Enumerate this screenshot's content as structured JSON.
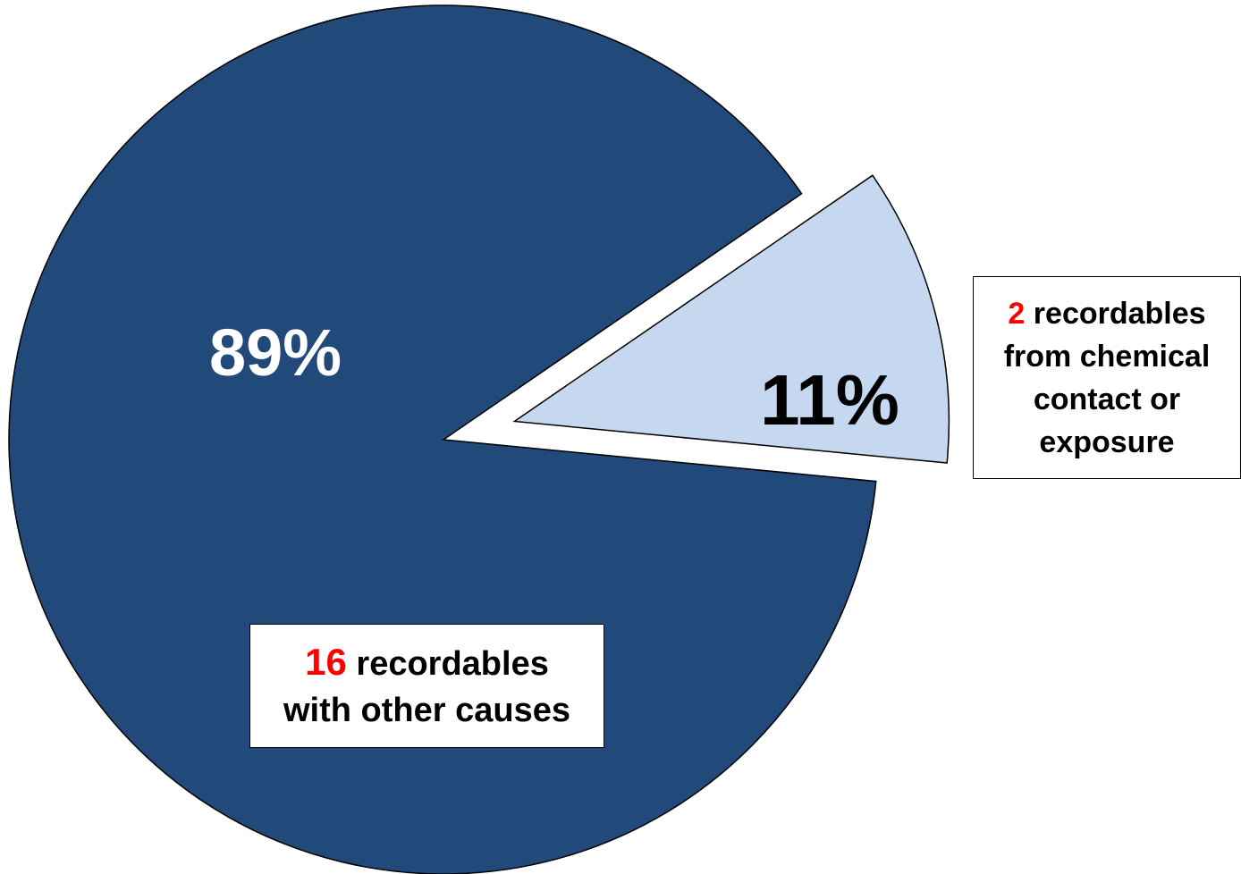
{
  "chart_data": {
    "type": "pie",
    "slices": [
      {
        "value": 16,
        "percent_label": "89%",
        "color": "#21497a",
        "label_color": "#ffffff",
        "exploded": false
      },
      {
        "value": 2,
        "percent_label": "11%",
        "color": "#c6d8ef",
        "label_color": "#000000",
        "exploded": true
      }
    ],
    "callouts": [
      {
        "count": "16",
        "text_line1": "recordables",
        "text_line2": "with other causes"
      },
      {
        "count": "2",
        "text_line1": "recordables",
        "text_line2": "from chemical",
        "text_line3": "contact or",
        "text_line4": "exposure"
      }
    ],
    "legend": "none",
    "title": ""
  }
}
